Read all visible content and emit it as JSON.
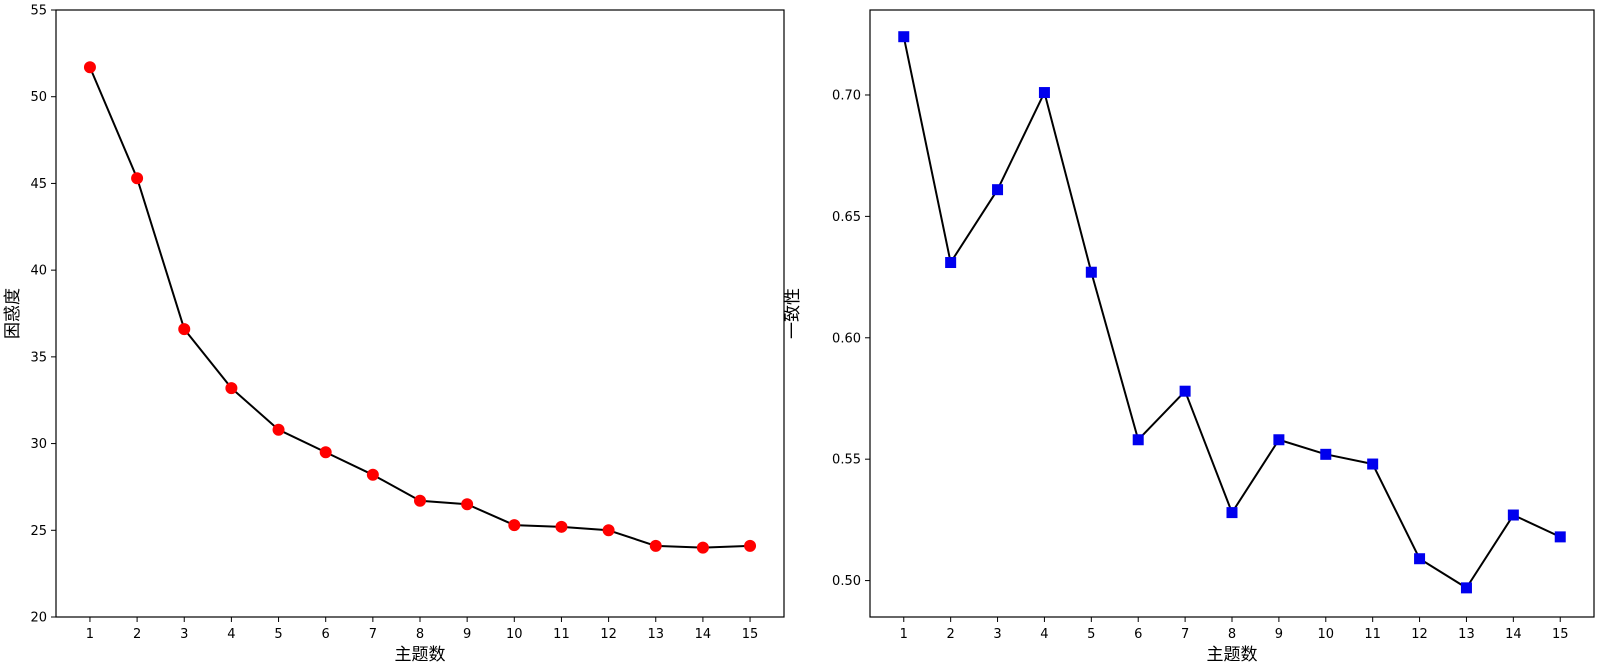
{
  "chart_data": [
    {
      "type": "line",
      "title": "",
      "xlabel": "主题数",
      "ylabel": "困惑度",
      "x": [
        1,
        2,
        3,
        4,
        5,
        6,
        7,
        8,
        9,
        10,
        11,
        12,
        13,
        14,
        15
      ],
      "xlim": [
        0.28,
        15.72
      ],
      "ylim": [
        20,
        55
      ],
      "yticks": [
        20,
        25,
        30,
        35,
        40,
        45,
        50,
        55
      ],
      "ytick_labels": [
        "20",
        "25",
        "30",
        "35",
        "40",
        "45",
        "50",
        "55"
      ],
      "grid": false,
      "series": [
        {
          "values": [
            51.7,
            45.3,
            36.6,
            33.2,
            30.8,
            29.5,
            28.2,
            26.7,
            26.5,
            25.3,
            25.2,
            25.0,
            24.1,
            24.0,
            24.1
          ],
          "line_color": "#000000",
          "marker": "circle",
          "marker_color": "#ff0000"
        }
      ]
    },
    {
      "type": "line",
      "title": "",
      "xlabel": "主题数",
      "ylabel": "一致性",
      "x": [
        1,
        2,
        3,
        4,
        5,
        6,
        7,
        8,
        9,
        10,
        11,
        12,
        13,
        14,
        15
      ],
      "xlim": [
        0.28,
        15.72
      ],
      "ylim": [
        0.485,
        0.735
      ],
      "yticks": [
        0.5,
        0.55,
        0.6,
        0.65,
        0.7
      ],
      "ytick_labels": [
        "0.50",
        "0.55",
        "0.60",
        "0.65",
        "0.70"
      ],
      "grid": false,
      "series": [
        {
          "values": [
            0.724,
            0.631,
            0.661,
            0.701,
            0.627,
            0.558,
            0.578,
            0.528,
            0.558,
            0.552,
            0.548,
            0.509,
            0.497,
            0.527,
            0.518
          ],
          "line_color": "#000000",
          "marker": "square",
          "marker_color": "#0000ee"
        }
      ]
    }
  ]
}
